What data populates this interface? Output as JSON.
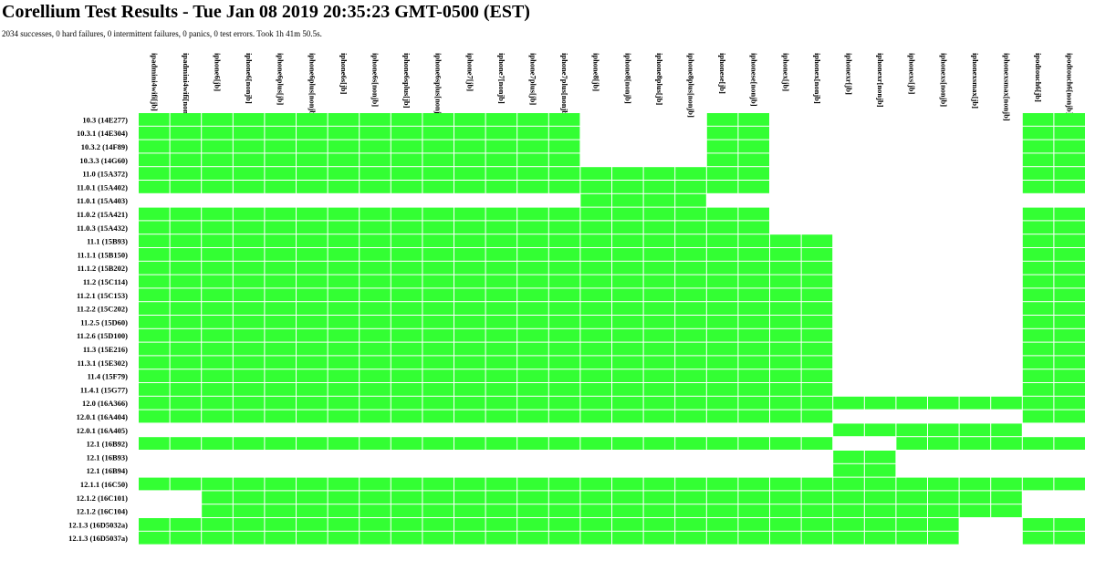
{
  "header": {
    "title": "Corellium Test Results - Tue Jan 08 2019 20:35:23 GMT-0500 (EST)",
    "summary": "2034 successes, 0 hard failures, 0 intermittent failures, 0 panics, 0 test errors. Took 1h 41m 50.5s."
  },
  "table": {
    "pass_color": "#33ff33",
    "columns": [
      "ipadmini4wifi[jb]",
      "ipadmini4wifi[nonjb]",
      "iphone6[jb]",
      "iphone6[nonjb]",
      "iphone6plus[jb]",
      "iphone6plus[nonjb]",
      "iphone6s[jb]",
      "iphone6s[nonjb]",
      "iphone6splus[jb]",
      "iphone6splus[nonjb]",
      "iphone7[jb]",
      "iphone7[nonjb]",
      "iphone7plus[jb]",
      "iphone7plus[nonjb]",
      "iphone8[jb]",
      "iphone8[nonjb]",
      "iphone8plus[jb]",
      "iphone8plus[nonjb]",
      "iphonese[jb]",
      "iphonese[nonjb]",
      "iphonex[jb]",
      "iphonex[nonjb]",
      "iphonexr[jb]",
      "iphonexr[nonjb]",
      "iphonexs[jb]",
      "iphonexs[nonjb]",
      "iphonexsmax[jb]",
      "iphonexsmax[nonjb]",
      "ipodtouch6[jb]",
      "ipodtouch6[nonjb]"
    ],
    "rows": [
      {
        "label": "10.3 (14E277)",
        "cells": [
          1,
          1,
          1,
          1,
          1,
          1,
          1,
          1,
          1,
          1,
          1,
          1,
          1,
          1,
          0,
          0,
          0,
          0,
          1,
          1,
          0,
          0,
          0,
          0,
          0,
          0,
          0,
          0,
          1,
          1
        ]
      },
      {
        "label": "10.3.1 (14E304)",
        "cells": [
          1,
          1,
          1,
          1,
          1,
          1,
          1,
          1,
          1,
          1,
          1,
          1,
          1,
          1,
          0,
          0,
          0,
          0,
          1,
          1,
          0,
          0,
          0,
          0,
          0,
          0,
          0,
          0,
          1,
          1
        ]
      },
      {
        "label": "10.3.2 (14F89)",
        "cells": [
          1,
          1,
          1,
          1,
          1,
          1,
          1,
          1,
          1,
          1,
          1,
          1,
          1,
          1,
          0,
          0,
          0,
          0,
          1,
          1,
          0,
          0,
          0,
          0,
          0,
          0,
          0,
          0,
          1,
          1
        ]
      },
      {
        "label": "10.3.3 (14G60)",
        "cells": [
          1,
          1,
          1,
          1,
          1,
          1,
          1,
          1,
          1,
          1,
          1,
          1,
          1,
          1,
          0,
          0,
          0,
          0,
          1,
          1,
          0,
          0,
          0,
          0,
          0,
          0,
          0,
          0,
          1,
          1
        ]
      },
      {
        "label": "11.0 (15A372)",
        "cells": [
          1,
          1,
          1,
          1,
          1,
          1,
          1,
          1,
          1,
          1,
          1,
          1,
          1,
          1,
          1,
          1,
          1,
          1,
          1,
          1,
          0,
          0,
          0,
          0,
          0,
          0,
          0,
          0,
          1,
          1
        ]
      },
      {
        "label": "11.0.1 (15A402)",
        "cells": [
          1,
          1,
          1,
          1,
          1,
          1,
          1,
          1,
          1,
          1,
          1,
          1,
          1,
          1,
          1,
          1,
          1,
          1,
          1,
          1,
          0,
          0,
          0,
          0,
          0,
          0,
          0,
          0,
          1,
          1
        ]
      },
      {
        "label": "11.0.1 (15A403)",
        "cells": [
          0,
          0,
          0,
          0,
          0,
          0,
          0,
          0,
          0,
          0,
          0,
          0,
          0,
          0,
          1,
          1,
          1,
          1,
          0,
          0,
          0,
          0,
          0,
          0,
          0,
          0,
          0,
          0,
          0,
          0
        ]
      },
      {
        "label": "11.0.2 (15A421)",
        "cells": [
          1,
          1,
          1,
          1,
          1,
          1,
          1,
          1,
          1,
          1,
          1,
          1,
          1,
          1,
          1,
          1,
          1,
          1,
          1,
          1,
          0,
          0,
          0,
          0,
          0,
          0,
          0,
          0,
          1,
          1
        ]
      },
      {
        "label": "11.0.3 (15A432)",
        "cells": [
          1,
          1,
          1,
          1,
          1,
          1,
          1,
          1,
          1,
          1,
          1,
          1,
          1,
          1,
          1,
          1,
          1,
          1,
          1,
          1,
          0,
          0,
          0,
          0,
          0,
          0,
          0,
          0,
          1,
          1
        ]
      },
      {
        "label": "11.1 (15B93)",
        "cells": [
          1,
          1,
          1,
          1,
          1,
          1,
          1,
          1,
          1,
          1,
          1,
          1,
          1,
          1,
          1,
          1,
          1,
          1,
          1,
          1,
          1,
          1,
          0,
          0,
          0,
          0,
          0,
          0,
          1,
          1
        ]
      },
      {
        "label": "11.1.1 (15B150)",
        "cells": [
          1,
          1,
          1,
          1,
          1,
          1,
          1,
          1,
          1,
          1,
          1,
          1,
          1,
          1,
          1,
          1,
          1,
          1,
          1,
          1,
          1,
          1,
          0,
          0,
          0,
          0,
          0,
          0,
          1,
          1
        ]
      },
      {
        "label": "11.1.2 (15B202)",
        "cells": [
          1,
          1,
          1,
          1,
          1,
          1,
          1,
          1,
          1,
          1,
          1,
          1,
          1,
          1,
          1,
          1,
          1,
          1,
          1,
          1,
          1,
          1,
          0,
          0,
          0,
          0,
          0,
          0,
          1,
          1
        ]
      },
      {
        "label": "11.2 (15C114)",
        "cells": [
          1,
          1,
          1,
          1,
          1,
          1,
          1,
          1,
          1,
          1,
          1,
          1,
          1,
          1,
          1,
          1,
          1,
          1,
          1,
          1,
          1,
          1,
          0,
          0,
          0,
          0,
          0,
          0,
          1,
          1
        ]
      },
      {
        "label": "11.2.1 (15C153)",
        "cells": [
          1,
          1,
          1,
          1,
          1,
          1,
          1,
          1,
          1,
          1,
          1,
          1,
          1,
          1,
          1,
          1,
          1,
          1,
          1,
          1,
          1,
          1,
          0,
          0,
          0,
          0,
          0,
          0,
          1,
          1
        ]
      },
      {
        "label": "11.2.2 (15C202)",
        "cells": [
          1,
          1,
          1,
          1,
          1,
          1,
          1,
          1,
          1,
          1,
          1,
          1,
          1,
          1,
          1,
          1,
          1,
          1,
          1,
          1,
          1,
          1,
          0,
          0,
          0,
          0,
          0,
          0,
          1,
          1
        ]
      },
      {
        "label": "11.2.5 (15D60)",
        "cells": [
          1,
          1,
          1,
          1,
          1,
          1,
          1,
          1,
          1,
          1,
          1,
          1,
          1,
          1,
          1,
          1,
          1,
          1,
          1,
          1,
          1,
          1,
          0,
          0,
          0,
          0,
          0,
          0,
          1,
          1
        ]
      },
      {
        "label": "11.2.6 (15D100)",
        "cells": [
          1,
          1,
          1,
          1,
          1,
          1,
          1,
          1,
          1,
          1,
          1,
          1,
          1,
          1,
          1,
          1,
          1,
          1,
          1,
          1,
          1,
          1,
          0,
          0,
          0,
          0,
          0,
          0,
          1,
          1
        ]
      },
      {
        "label": "11.3 (15E216)",
        "cells": [
          1,
          1,
          1,
          1,
          1,
          1,
          1,
          1,
          1,
          1,
          1,
          1,
          1,
          1,
          1,
          1,
          1,
          1,
          1,
          1,
          1,
          1,
          0,
          0,
          0,
          0,
          0,
          0,
          1,
          1
        ]
      },
      {
        "label": "11.3.1 (15E302)",
        "cells": [
          1,
          1,
          1,
          1,
          1,
          1,
          1,
          1,
          1,
          1,
          1,
          1,
          1,
          1,
          1,
          1,
          1,
          1,
          1,
          1,
          1,
          1,
          0,
          0,
          0,
          0,
          0,
          0,
          1,
          1
        ]
      },
      {
        "label": "11.4 (15F79)",
        "cells": [
          1,
          1,
          1,
          1,
          1,
          1,
          1,
          1,
          1,
          1,
          1,
          1,
          1,
          1,
          1,
          1,
          1,
          1,
          1,
          1,
          1,
          1,
          0,
          0,
          0,
          0,
          0,
          0,
          1,
          1
        ]
      },
      {
        "label": "11.4.1 (15G77)",
        "cells": [
          1,
          1,
          1,
          1,
          1,
          1,
          1,
          1,
          1,
          1,
          1,
          1,
          1,
          1,
          1,
          1,
          1,
          1,
          1,
          1,
          1,
          1,
          0,
          0,
          0,
          0,
          0,
          0,
          1,
          1
        ]
      },
      {
        "label": "12.0 (16A366)",
        "cells": [
          1,
          1,
          1,
          1,
          1,
          1,
          1,
          1,
          1,
          1,
          1,
          1,
          1,
          1,
          1,
          1,
          1,
          1,
          1,
          1,
          1,
          1,
          1,
          1,
          1,
          1,
          1,
          1,
          1,
          1
        ]
      },
      {
        "label": "12.0.1 (16A404)",
        "cells": [
          1,
          1,
          1,
          1,
          1,
          1,
          1,
          1,
          1,
          1,
          1,
          1,
          1,
          1,
          1,
          1,
          1,
          1,
          1,
          1,
          1,
          1,
          0,
          0,
          0,
          0,
          0,
          0,
          1,
          1
        ]
      },
      {
        "label": "12.0.1 (16A405)",
        "cells": [
          0,
          0,
          0,
          0,
          0,
          0,
          0,
          0,
          0,
          0,
          0,
          0,
          0,
          0,
          0,
          0,
          0,
          0,
          0,
          0,
          0,
          0,
          1,
          1,
          1,
          1,
          1,
          1,
          0,
          0
        ]
      },
      {
        "label": "12.1 (16B92)",
        "cells": [
          1,
          1,
          1,
          1,
          1,
          1,
          1,
          1,
          1,
          1,
          1,
          1,
          1,
          1,
          1,
          1,
          1,
          1,
          1,
          1,
          1,
          1,
          0,
          0,
          1,
          1,
          1,
          1,
          1,
          1
        ]
      },
      {
        "label": "12.1 (16B93)",
        "cells": [
          0,
          0,
          0,
          0,
          0,
          0,
          0,
          0,
          0,
          0,
          0,
          0,
          0,
          0,
          0,
          0,
          0,
          0,
          0,
          0,
          0,
          0,
          1,
          1,
          0,
          0,
          0,
          0,
          0,
          0
        ]
      },
      {
        "label": "12.1 (16B94)",
        "cells": [
          0,
          0,
          0,
          0,
          0,
          0,
          0,
          0,
          0,
          0,
          0,
          0,
          0,
          0,
          0,
          0,
          0,
          0,
          0,
          0,
          0,
          0,
          1,
          1,
          0,
          0,
          0,
          0,
          0,
          0
        ]
      },
      {
        "label": "12.1.1 (16C50)",
        "cells": [
          1,
          1,
          1,
          1,
          1,
          1,
          1,
          1,
          1,
          1,
          1,
          1,
          1,
          1,
          1,
          1,
          1,
          1,
          1,
          1,
          1,
          1,
          1,
          1,
          1,
          1,
          1,
          1,
          1,
          1
        ]
      },
      {
        "label": "12.1.2 (16C101)",
        "cells": [
          0,
          0,
          1,
          1,
          1,
          1,
          1,
          1,
          1,
          1,
          1,
          1,
          1,
          1,
          1,
          1,
          1,
          1,
          1,
          1,
          1,
          1,
          1,
          1,
          1,
          1,
          1,
          1,
          0,
          0
        ]
      },
      {
        "label": "12.1.2 (16C104)",
        "cells": [
          0,
          0,
          1,
          1,
          1,
          1,
          1,
          1,
          1,
          1,
          1,
          1,
          1,
          1,
          1,
          1,
          1,
          1,
          1,
          1,
          1,
          1,
          1,
          1,
          1,
          1,
          1,
          1,
          0,
          0
        ]
      },
      {
        "label": "12.1.3 (16D5032a)",
        "cells": [
          1,
          1,
          1,
          1,
          1,
          1,
          1,
          1,
          1,
          1,
          1,
          1,
          1,
          1,
          1,
          1,
          1,
          1,
          1,
          1,
          1,
          1,
          1,
          1,
          1,
          1,
          0,
          0,
          1,
          1
        ]
      },
      {
        "label": "12.1.3 (16D5037a)",
        "cells": [
          1,
          1,
          1,
          1,
          1,
          1,
          1,
          1,
          1,
          1,
          1,
          1,
          1,
          1,
          1,
          1,
          1,
          1,
          1,
          1,
          1,
          1,
          1,
          1,
          1,
          1,
          0,
          0,
          1,
          1
        ]
      }
    ]
  }
}
